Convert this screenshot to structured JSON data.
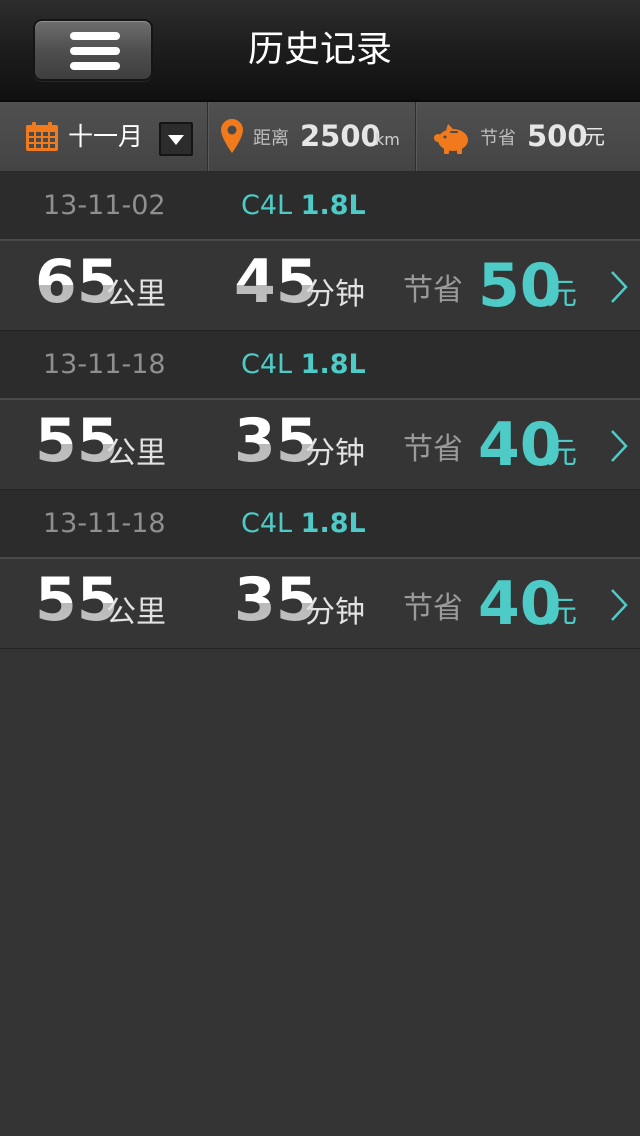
{
  "header": {
    "title": "历史记录",
    "menu_icon": "hamburger-menu-icon"
  },
  "summary": {
    "month": "十一月",
    "distance_label": "距离",
    "distance_value": "2500",
    "distance_unit": "km",
    "savings_label": "节省",
    "savings_value": "500",
    "savings_unit": "元",
    "calendar_icon": "calendar-icon",
    "location_icon": "map-pin-icon",
    "savings_icon": "piggy-bank-icon",
    "colors": {
      "orange_icon": "#f07a1c",
      "accent_teal": "#4ecbc7"
    }
  },
  "records": [
    {
      "date": "13-11-02",
      "car_model": "C4L",
      "engine": "1.8L",
      "distance": "65",
      "distance_unit": "公里",
      "duration": "45",
      "duration_unit": "分钟",
      "savings_label": "节省",
      "savings": "50",
      "savings_unit": "元"
    },
    {
      "date": "13-11-18",
      "car_model": "C4L",
      "engine": "1.8L",
      "distance": "55",
      "distance_unit": "公里",
      "duration": "35",
      "duration_unit": "分钟",
      "savings_label": "节省",
      "savings": "40",
      "savings_unit": "元"
    },
    {
      "date": "13-11-18",
      "car_model": "C4L",
      "engine": "1.8L",
      "distance": "55",
      "distance_unit": "公里",
      "duration": "35",
      "duration_unit": "分钟",
      "savings_label": "节省",
      "savings": "40",
      "savings_unit": "元"
    }
  ]
}
